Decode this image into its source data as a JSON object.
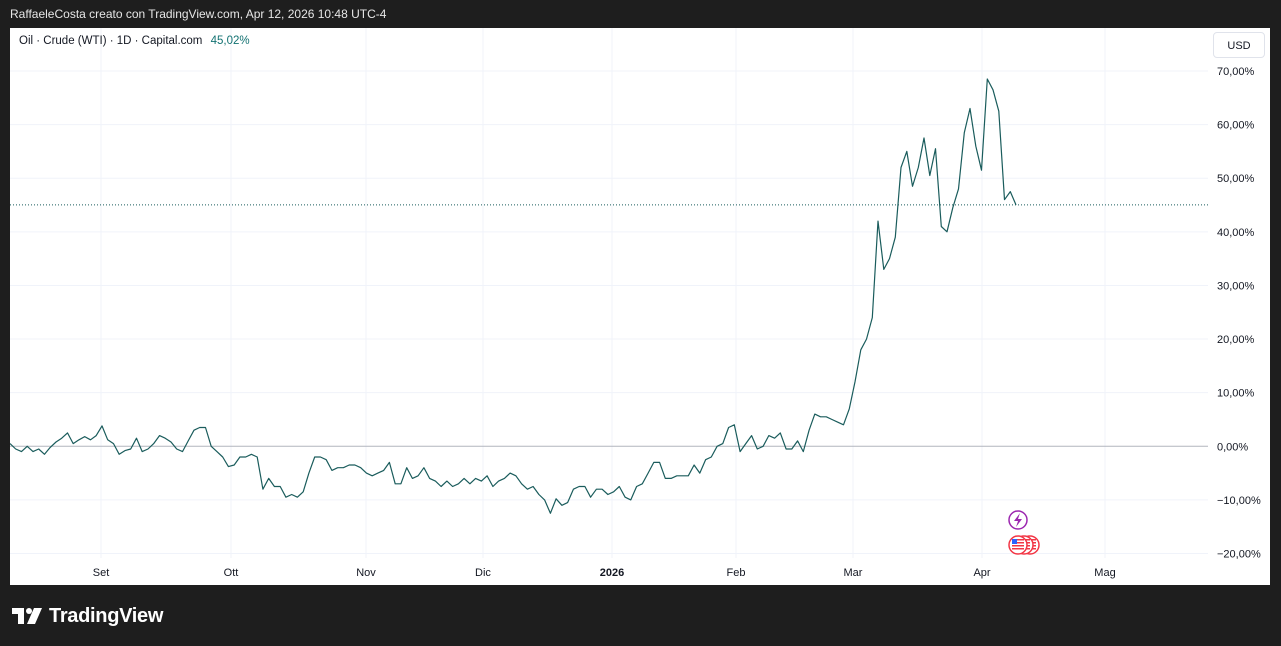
{
  "header": {
    "attribution": "RaffaeleCosta creato con TradingView.com, Apr 12, 2026 10:48 UTC-4"
  },
  "legend": {
    "symbol": "Oil · Crude (WTI) · 1D · Capital.com",
    "value": "45,02%"
  },
  "currency_button": "USD",
  "brand": {
    "name": "TradingView",
    "icon": "tradingview-logo-icon"
  },
  "colors": {
    "line": "#1a5c5c",
    "last_price_dotted": "#1a5c5c",
    "zero_line": "#b2b5be",
    "grid": "#f0f3fa",
    "lightning_badge": "#9c27b0",
    "flag_badge": "#f23645"
  },
  "chart_data": {
    "type": "line",
    "title": "",
    "xlabel": "",
    "ylabel": "",
    "ylim": [
      -20,
      70
    ],
    "y_scale": "percent",
    "grid": true,
    "x_ticks": [
      {
        "label": "Set",
        "bold": false
      },
      {
        "label": "Ott",
        "bold": false
      },
      {
        "label": "Nov",
        "bold": false
      },
      {
        "label": "Dic",
        "bold": false
      },
      {
        "label": "2026",
        "bold": true
      },
      {
        "label": "Feb",
        "bold": false
      },
      {
        "label": "Mar",
        "bold": false
      },
      {
        "label": "Apr",
        "bold": false
      },
      {
        "label": "Mag",
        "bold": false
      }
    ],
    "y_ticks": [
      "70,00%",
      "60,00%",
      "50,00%",
      "40,00%",
      "30,00%",
      "20,00%",
      "10,00%",
      "0,00%",
      "−10,00%",
      "−20,00%"
    ],
    "last_value": 45.02,
    "last_value_label": "45,02%",
    "series": [
      {
        "values": [
          0.5,
          -0.5,
          -1,
          0,
          -1,
          -0.5,
          -1.5,
          -0.2,
          0.8,
          1.5,
          2.5,
          0.5,
          1.2,
          1.8,
          1.2,
          2,
          3.8,
          1.2,
          0.5,
          -1.5,
          -0.8,
          -0.5,
          1.5,
          -1,
          -0.5,
          0.5,
          2,
          1.5,
          0.8,
          -0.5,
          -1,
          1,
          3,
          3.5,
          3.5,
          0,
          -1,
          -2,
          -3.8,
          -3.5,
          -2,
          -2,
          -1.5,
          -2,
          -8,
          -6,
          -7.5,
          -7.5,
          -9.5,
          -9,
          -9.5,
          -8.5,
          -5,
          -2,
          -2,
          -2.5,
          -4.5,
          -4,
          -4,
          -3.5,
          -3.5,
          -4,
          -5,
          -5.5,
          -5,
          -4.5,
          -3,
          -7,
          -7,
          -4,
          -6,
          -5.5,
          -4,
          -6,
          -6.5,
          -7.5,
          -6.5,
          -7.5,
          -7,
          -6,
          -7,
          -6,
          -6.5,
          -5.5,
          -7.5,
          -6.5,
          -6,
          -5,
          -5.5,
          -7,
          -8,
          -7.5,
          -9,
          -10,
          -12.5,
          -9.8,
          -11,
          -10.5,
          -8,
          -7.5,
          -7.5,
          -9.5,
          -8,
          -8,
          -9,
          -8.5,
          -7.5,
          -9.5,
          -10,
          -7.5,
          -7,
          -5,
          -3,
          -3,
          -6,
          -6,
          -5.5,
          -5.5,
          -5.5,
          -3.5,
          -5,
          -2.5,
          -2,
          0,
          0.5,
          3.5,
          4,
          -1,
          0.5,
          2,
          -0.5,
          0,
          2,
          1.5,
          2.5,
          -0.5,
          -0.5,
          1,
          -1,
          3,
          6,
          5.5,
          5.5,
          5,
          4.5,
          4,
          7,
          12,
          18,
          20,
          24,
          42,
          33,
          35,
          39,
          52,
          55,
          48.5,
          52,
          57.5,
          50.5,
          55.5,
          41,
          40,
          44.5,
          48,
          58.5,
          63,
          56,
          51.5,
          68.5,
          66.5,
          62.5,
          46,
          47.5,
          45.02
        ]
      }
    ],
    "event_badges": [
      {
        "type": "lightning",
        "icon": "lightning-icon"
      },
      {
        "type": "country-flags",
        "icon": "us-flag-icon",
        "count": 3
      }
    ]
  }
}
